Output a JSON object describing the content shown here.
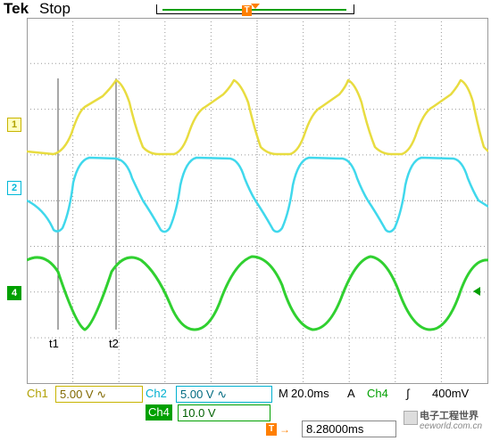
{
  "header": {
    "brand": "Tek",
    "status": "Stop",
    "trigger_marker": "T"
  },
  "channels": {
    "ch1_marker": "1",
    "ch2_marker": "2",
    "ch4_marker": "4"
  },
  "cursors": {
    "t1_label": "t1",
    "t2_label": "t2"
  },
  "readout": {
    "ch1_label": "Ch1",
    "ch1_scale": "5.00 V ∿",
    "ch2_label": "Ch2",
    "ch2_scale": "5.00 V ∿",
    "ch4_label": "Ch4",
    "ch4_scale": "10.0 V",
    "timebase_prefix": "M",
    "timebase": "20.0ms",
    "acq_mode": "A",
    "trigger_source": "Ch4",
    "trigger_slope": "∫",
    "trigger_level": "400mV",
    "trigger_position_icon": "T",
    "trigger_position_arrow": "→",
    "trigger_position": "8.28000ms"
  },
  "watermark": {
    "line1": "电子工程世界",
    "line2": "eeworld.com.cn"
  },
  "colors": {
    "ch1": "#e8dc40",
    "ch2": "#40d8ec",
    "ch4": "#30d030",
    "trigger": "#ff7f00",
    "grid": "#9a9a9a"
  },
  "icons": {
    "trigger": "trigger-T-icon",
    "slope": "rising-edge-icon",
    "ground_ch4_right": "level-arrow-icon"
  }
}
